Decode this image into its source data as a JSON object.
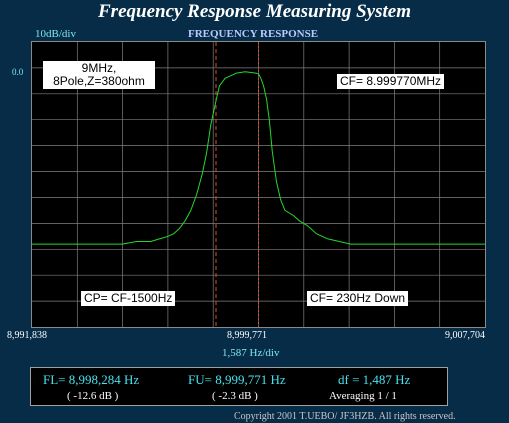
{
  "app_title": "Frequency Response Measuring System",
  "scale_label": "10dB/div",
  "chart_title": "FREQUENCY RESPONSE",
  "zero_level_label": "0.0",
  "annotations": {
    "filter_line1": "9MHz,",
    "filter_line2": "8Pole,Z=380ohm",
    "center_freq": "CF= 8.999770MHz",
    "cp_label": "CP= CF-1500Hz",
    "cf_shift": "CF= 230Hz Down"
  },
  "freq_axis": {
    "left": "8,991,838",
    "center": "8,999,771",
    "right": "9,007,704",
    "span": "1,587  Hz/div"
  },
  "readout": {
    "fl": "FL= 8,998,284  Hz",
    "fl_db": "( -12.6 dB )",
    "fu": "FU= 8,999,771  Hz",
    "fu_db": "( -2.3 dB )",
    "df": "df = 1,487  Hz",
    "averaging": "Averaging   1 / 1"
  },
  "copyright": "Copyright 2001 T.UEBO/ JF3HZB. All rights reserved.",
  "colors": {
    "background": "#062c48",
    "plot_background": "#000000",
    "grid": "#808080",
    "trace": "#27d62e",
    "marker_line": "#e05020",
    "readout_text": "#46e3ee"
  },
  "chart_data": {
    "type": "line",
    "x_unit": "Hz",
    "y_unit": "dB",
    "xlim": [
      8991838,
      9007704
    ],
    "ylim": [
      -100,
      10
    ],
    "markers": [
      8998284,
      8999771
    ],
    "series": [
      {
        "x": [
          8991838,
          8993000,
          8994000,
          8995000,
          8995500,
          8996000,
          8996300,
          8996600,
          8996800,
          8997000,
          8997200,
          8997400,
          8997600,
          8997800,
          8997950,
          8998100,
          8998200,
          8998284,
          8998400,
          8998600,
          8998800,
          8999000,
          8999300,
          8999550,
          8999700,
          8999771,
          8999850,
          8999950,
          9000050,
          9000150,
          9000250,
          9000400,
          9000550,
          9000700,
          9000850,
          9001000,
          9001200,
          9001500,
          9001800,
          9002200,
          9002600,
          9003000,
          9004000,
          9005000,
          9006000,
          9007704
        ],
        "y": [
          -68,
          -68,
          -68,
          -68,
          -67,
          -67,
          -66,
          -65,
          -64,
          -62,
          -59,
          -55,
          -49,
          -41,
          -33,
          -22,
          -17,
          -12.6,
          -7,
          -4,
          -3,
          -2,
          -1.5,
          -1.8,
          -2.1,
          -2.3,
          -4,
          -7,
          -12,
          -20,
          -32,
          -44,
          -51,
          -55,
          -56,
          -57,
          -59,
          -61,
          -64,
          -66,
          -67,
          -68,
          -68,
          -68,
          -68,
          -68
        ]
      }
    ]
  }
}
